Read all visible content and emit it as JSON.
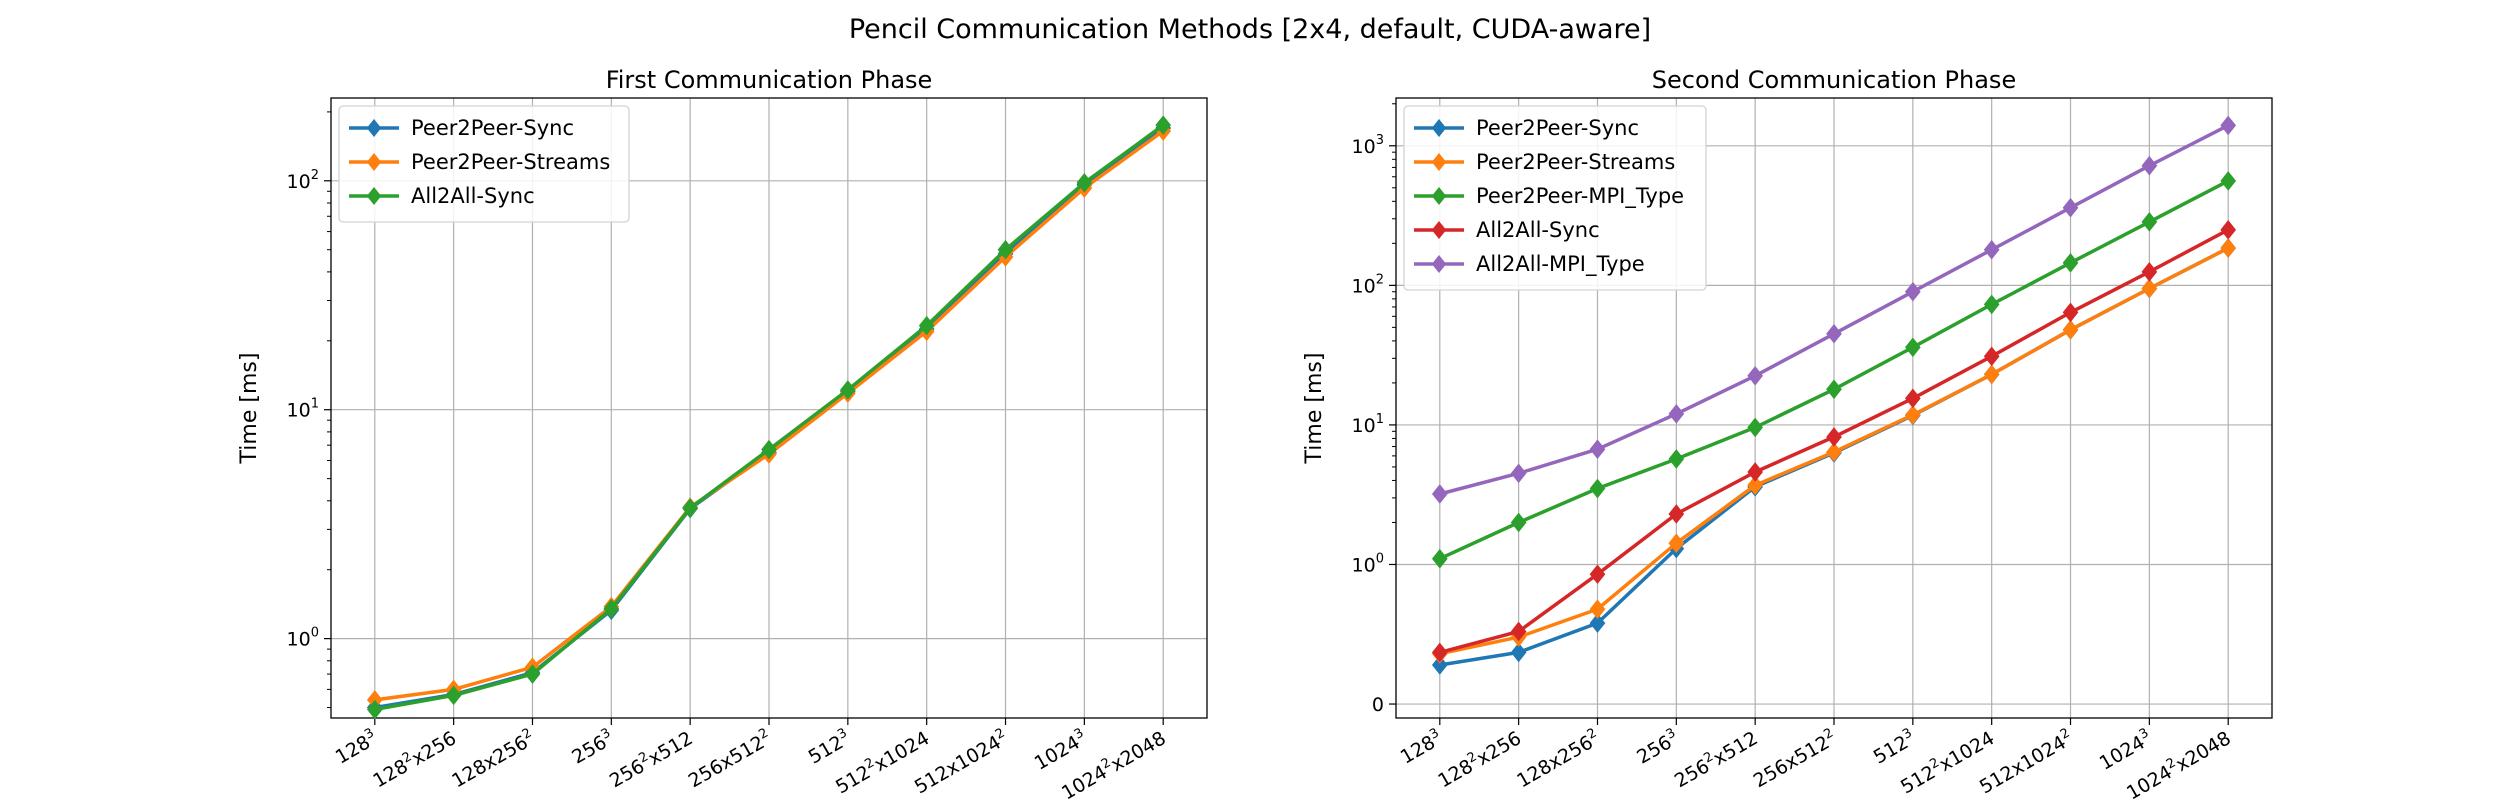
{
  "suptitle": "Pencil Communication Methods [2x4, default, CUDA-aware]",
  "colors": {
    "Peer2Peer-Sync": "#1f77b4",
    "Peer2Peer-Streams": "#ff7f0e",
    "Peer2Peer-MPI_Type": "#2ca02c",
    "All2All-Sync": "#d62728",
    "All2All-MPI_Type": "#9467bd",
    "All2All-Sync-left": "#2ca02c"
  },
  "chart_data": [
    {
      "type": "line",
      "title": "First Communication Phase",
      "xlabel": "",
      "ylabel": "Time [ms]",
      "yscale": "log",
      "ylim": [
        0.45,
        230
      ],
      "yticks": [
        {
          "value": 1,
          "base": "10",
          "exp": "0"
        },
        {
          "value": 10,
          "base": "10",
          "exp": "1"
        },
        {
          "value": 100,
          "base": "10",
          "exp": "2"
        }
      ],
      "grid": true,
      "legend_position": "top-left",
      "x_tick_labels": [
        {
          "base": "128",
          "sup": "3",
          "rest": ""
        },
        {
          "base": "128",
          "sup": "2",
          "rest": "x256"
        },
        {
          "base": "128x256",
          "sup": "2",
          "rest": ""
        },
        {
          "base": "256",
          "sup": "3",
          "rest": ""
        },
        {
          "base": "256",
          "sup": "2",
          "rest": "x512"
        },
        {
          "base": "256x512",
          "sup": "2",
          "rest": ""
        },
        {
          "base": "512",
          "sup": "3",
          "rest": ""
        },
        {
          "base": "512",
          "sup": "2",
          "rest": "x1024"
        },
        {
          "base": "512x1024",
          "sup": "2",
          "rest": ""
        },
        {
          "base": "1024",
          "sup": "3",
          "rest": ""
        },
        {
          "base": "1024",
          "sup": "2",
          "rest": "x2048"
        }
      ],
      "series": [
        {
          "name": "Peer2Peer-Sync",
          "color": "#1f77b4",
          "values": [
            0.5,
            0.57,
            0.71,
            1.33,
            3.7,
            6.5,
            12.0,
            22.5,
            48.0,
            96.0,
            170.0
          ]
        },
        {
          "name": "Peer2Peer-Streams",
          "color": "#ff7f0e",
          "values": [
            0.54,
            0.6,
            0.75,
            1.38,
            3.75,
            6.4,
            11.8,
            22.0,
            46.5,
            93.0,
            165.0
          ]
        },
        {
          "name": "All2All-Sync",
          "color": "#2ca02c",
          "values": [
            0.49,
            0.565,
            0.7,
            1.35,
            3.72,
            6.7,
            12.2,
            23.3,
            50.0,
            98.0,
            175.0
          ]
        }
      ]
    },
    {
      "type": "line",
      "title": "Second Communication Phase",
      "xlabel": "",
      "ylabel": "Time [ms]",
      "yscale": "symlog",
      "ylim": [
        -0.1,
        2200
      ],
      "yticks": [
        {
          "value": 0,
          "base": "0",
          "exp": ""
        },
        {
          "value": 1,
          "base": "10",
          "exp": "0"
        },
        {
          "value": 10,
          "base": "10",
          "exp": "1"
        },
        {
          "value": 100,
          "base": "10",
          "exp": "2"
        },
        {
          "value": 1000,
          "base": "10",
          "exp": "3"
        }
      ],
      "grid": true,
      "legend_position": "top-left",
      "x_tick_labels": [
        {
          "base": "128",
          "sup": "3",
          "rest": ""
        },
        {
          "base": "128",
          "sup": "2",
          "rest": "x256"
        },
        {
          "base": "128x256",
          "sup": "2",
          "rest": ""
        },
        {
          "base": "256",
          "sup": "3",
          "rest": ""
        },
        {
          "base": "256",
          "sup": "2",
          "rest": "x512"
        },
        {
          "base": "256x512",
          "sup": "2",
          "rest": ""
        },
        {
          "base": "512",
          "sup": "3",
          "rest": ""
        },
        {
          "base": "512",
          "sup": "2",
          "rest": "x1024"
        },
        {
          "base": "512x1024",
          "sup": "2",
          "rest": ""
        },
        {
          "base": "1024",
          "sup": "3",
          "rest": ""
        },
        {
          "base": "1024",
          "sup": "2",
          "rest": "x2048"
        }
      ],
      "series": [
        {
          "name": "Peer2Peer-Sync",
          "color": "#1f77b4",
          "values": [
            0.28,
            0.37,
            0.58,
            1.3,
            3.6,
            6.3,
            11.7,
            23.0,
            48.0,
            95.0,
            185.0
          ]
        },
        {
          "name": "Peer2Peer-Streams",
          "color": "#ff7f0e",
          "values": [
            0.36,
            0.48,
            0.68,
            1.42,
            3.7,
            6.4,
            11.8,
            23.0,
            48.0,
            95.0,
            185.0
          ]
        },
        {
          "name": "Peer2Peer-MPI_Type",
          "color": "#2ca02c",
          "values": [
            1.1,
            2.0,
            3.5,
            5.7,
            9.6,
            18.0,
            36.0,
            73.0,
            145.0,
            285.0,
            560.0
          ]
        },
        {
          "name": "All2All-Sync",
          "color": "#d62728",
          "values": [
            0.37,
            0.52,
            0.93,
            2.3,
            4.6,
            8.2,
            15.5,
            31.0,
            64.0,
            125.0,
            250.0
          ]
        },
        {
          "name": "All2All-MPI_Type",
          "color": "#9467bd",
          "values": [
            3.2,
            4.5,
            6.7,
            12.0,
            22.5,
            45.0,
            90.0,
            180.0,
            360.0,
            720.0,
            1400.0
          ]
        }
      ]
    }
  ]
}
